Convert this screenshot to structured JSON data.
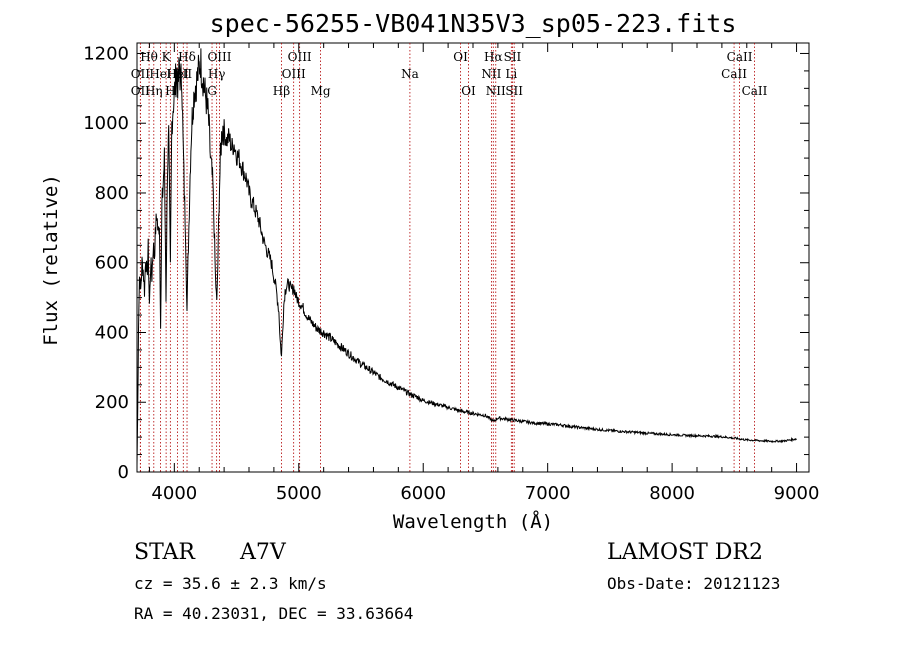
{
  "chart_data": {
    "type": "line",
    "title": "spec-56255-VB041N35V3_sp05-223.fits",
    "xlabel": "Wavelength (Å)",
    "ylabel": "Flux (relative)",
    "xlim": [
      3700,
      9100
    ],
    "ylim": [
      0,
      1230
    ],
    "xticks": [
      4000,
      5000,
      6000,
      7000,
      8000,
      9000
    ],
    "yticks": [
      0,
      200,
      400,
      600,
      800,
      1000,
      1200
    ],
    "grid": false,
    "series": [
      {
        "points": [
          [
            3700,
            20
          ],
          [
            3705,
            150
          ],
          [
            3712,
            420
          ],
          [
            3720,
            560
          ],
          [
            3730,
            520
          ],
          [
            3740,
            600
          ],
          [
            3750,
            580
          ],
          [
            3760,
            520
          ],
          [
            3770,
            620
          ],
          [
            3780,
            560
          ],
          [
            3790,
            640
          ],
          [
            3800,
            480
          ],
          [
            3810,
            600
          ],
          [
            3820,
            560
          ],
          [
            3830,
            650
          ],
          [
            3840,
            620
          ],
          [
            3850,
            700
          ],
          [
            3860,
            740
          ],
          [
            3870,
            680
          ],
          [
            3880,
            720
          ],
          [
            3890,
            430
          ],
          [
            3900,
            760
          ],
          [
            3910,
            820
          ],
          [
            3920,
            900
          ],
          [
            3933,
            500
          ],
          [
            3945,
            880
          ],
          [
            3955,
            960
          ],
          [
            3968,
            580
          ],
          [
            3980,
            1000
          ],
          [
            3990,
            1050
          ],
          [
            4000,
            1080
          ],
          [
            4010,
            1120
          ],
          [
            4020,
            1150
          ],
          [
            4030,
            1100
          ],
          [
            4040,
            1170
          ],
          [
            4050,
            1120
          ],
          [
            4060,
            1140
          ],
          [
            4070,
            950
          ],
          [
            4080,
            800
          ],
          [
            4090,
            700
          ],
          [
            4102,
            460
          ],
          [
            4110,
            600
          ],
          [
            4120,
            760
          ],
          [
            4130,
            900
          ],
          [
            4140,
            1000
          ],
          [
            4150,
            1050
          ],
          [
            4160,
            1090
          ],
          [
            4170,
            1110
          ],
          [
            4180,
            1120
          ],
          [
            4190,
            1140
          ],
          [
            4200,
            1160
          ],
          [
            4210,
            1180
          ],
          [
            4220,
            1150
          ],
          [
            4230,
            1130
          ],
          [
            4240,
            1100
          ],
          [
            4250,
            1080
          ],
          [
            4260,
            1060
          ],
          [
            4270,
            1030
          ],
          [
            4280,
            980
          ],
          [
            4290,
            900
          ],
          [
            4300,
            860
          ],
          [
            4310,
            820
          ],
          [
            4320,
            700
          ],
          [
            4330,
            560
          ],
          [
            4341,
            480
          ],
          [
            4350,
            600
          ],
          [
            4360,
            780
          ],
          [
            4370,
            900
          ],
          [
            4380,
            960
          ],
          [
            4390,
            990
          ],
          [
            4400,
            980
          ],
          [
            4420,
            950
          ],
          [
            4440,
            960
          ],
          [
            4460,
            930
          ],
          [
            4480,
            940
          ],
          [
            4500,
            910
          ],
          [
            4520,
            900
          ],
          [
            4540,
            880
          ],
          [
            4560,
            860
          ],
          [
            4580,
            840
          ],
          [
            4600,
            800
          ],
          [
            4620,
            780
          ],
          [
            4640,
            760
          ],
          [
            4660,
            740
          ],
          [
            4680,
            720
          ],
          [
            4700,
            690
          ],
          [
            4720,
            660
          ],
          [
            4740,
            640
          ],
          [
            4760,
            620
          ],
          [
            4780,
            600
          ],
          [
            4800,
            560
          ],
          [
            4820,
            520
          ],
          [
            4840,
            460
          ],
          [
            4850,
            380
          ],
          [
            4861,
            330
          ],
          [
            4870,
            400
          ],
          [
            4880,
            480
          ],
          [
            4890,
            520
          ],
          [
            4900,
            530
          ],
          [
            4920,
            540
          ],
          [
            4940,
            520
          ],
          [
            4960,
            530
          ],
          [
            4980,
            500
          ],
          [
            5000,
            490
          ],
          [
            5020,
            480
          ],
          [
            5050,
            460
          ],
          [
            5080,
            440
          ],
          [
            5100,
            430
          ],
          [
            5150,
            410
          ],
          [
            5200,
            400
          ],
          [
            5250,
            385
          ],
          [
            5300,
            370
          ],
          [
            5350,
            355
          ],
          [
            5400,
            340
          ],
          [
            5450,
            325
          ],
          [
            5500,
            310
          ],
          [
            5550,
            298
          ],
          [
            5600,
            285
          ],
          [
            5650,
            272
          ],
          [
            5700,
            262
          ],
          [
            5750,
            252
          ],
          [
            5800,
            242
          ],
          [
            5850,
            232
          ],
          [
            5900,
            222
          ],
          [
            5950,
            215
          ],
          [
            6000,
            205
          ],
          [
            6100,
            195
          ],
          [
            6200,
            185
          ],
          [
            6300,
            175
          ],
          [
            6400,
            168
          ],
          [
            6500,
            162
          ],
          [
            6563,
            145
          ],
          [
            6600,
            155
          ],
          [
            6700,
            150
          ],
          [
            6800,
            145
          ],
          [
            6900,
            140
          ],
          [
            7000,
            138
          ],
          [
            7100,
            135
          ],
          [
            7200,
            130
          ],
          [
            7300,
            126
          ],
          [
            7400,
            122
          ],
          [
            7500,
            119
          ],
          [
            7600,
            116
          ],
          [
            7700,
            114
          ],
          [
            7800,
            111
          ],
          [
            7900,
            109
          ],
          [
            8000,
            107
          ],
          [
            8100,
            105
          ],
          [
            8200,
            104
          ],
          [
            8300,
            103
          ],
          [
            8400,
            101
          ],
          [
            8500,
            97
          ],
          [
            8600,
            92
          ],
          [
            8700,
            90
          ],
          [
            8800,
            88
          ],
          [
            8900,
            89
          ],
          [
            9000,
            95
          ]
        ]
      }
    ],
    "lines": [
      {
        "wl": 3797,
        "label": "Hθ",
        "row": 0
      },
      {
        "wl": 3727,
        "label": "OII",
        "row": 1
      },
      {
        "wl": 3727,
        "label": "OII",
        "row": 2
      },
      {
        "wl": 3835,
        "label": "Hη",
        "row": 2
      },
      {
        "wl": 3889,
        "label": "HeI",
        "row": 1
      },
      {
        "wl": 3934,
        "label": "K",
        "row": 0
      },
      {
        "wl": 3968,
        "label": "H",
        "row": 2
      },
      {
        "wl": 4026,
        "label": "HeI",
        "row": 1
      },
      {
        "wl": 4102,
        "label": "Hδ",
        "row": 0
      },
      {
        "wl": 4072,
        "label": "SII",
        "row": 1
      },
      {
        "wl": 4303,
        "label": "G",
        "row": 2
      },
      {
        "wl": 4340,
        "label": "Hγ",
        "row": 1
      },
      {
        "wl": 4363,
        "label": "OIII",
        "row": 0
      },
      {
        "wl": 4861,
        "label": "Hβ",
        "row": 2
      },
      {
        "wl": 4959,
        "label": "OIII",
        "row": 1
      },
      {
        "wl": 5007,
        "label": "OIII",
        "row": 0
      },
      {
        "wl": 5175,
        "label": "Mg",
        "row": 2
      },
      {
        "wl": 5893,
        "label": "Na",
        "row": 1
      },
      {
        "wl": 6300,
        "label": "OI",
        "row": 0
      },
      {
        "wl": 6364,
        "label": "OI",
        "row": 2
      },
      {
        "wl": 6548,
        "label": "NII",
        "row": 1
      },
      {
        "wl": 6563,
        "label": "Hα",
        "row": 0
      },
      {
        "wl": 6583,
        "label": "NII",
        "row": 2
      },
      {
        "wl": 6708,
        "label": "Li",
        "row": 1
      },
      {
        "wl": 6717,
        "label": "SII",
        "row": 0
      },
      {
        "wl": 6731,
        "label": "SII",
        "row": 2
      },
      {
        "wl": 8498,
        "label": "CaII",
        "row": 1
      },
      {
        "wl": 8542,
        "label": "CaII",
        "row": 0
      },
      {
        "wl": 8662,
        "label": "CaII",
        "row": 2
      }
    ]
  },
  "info": {
    "class_label": "STAR",
    "subclass": "A7V",
    "survey": "LAMOST DR2",
    "cz": "cz = 35.6 ± 2.3 km/s",
    "obs_date": "Obs-Date: 20121123",
    "coords": "RA =  40.23031, DEC =  33.63664"
  }
}
